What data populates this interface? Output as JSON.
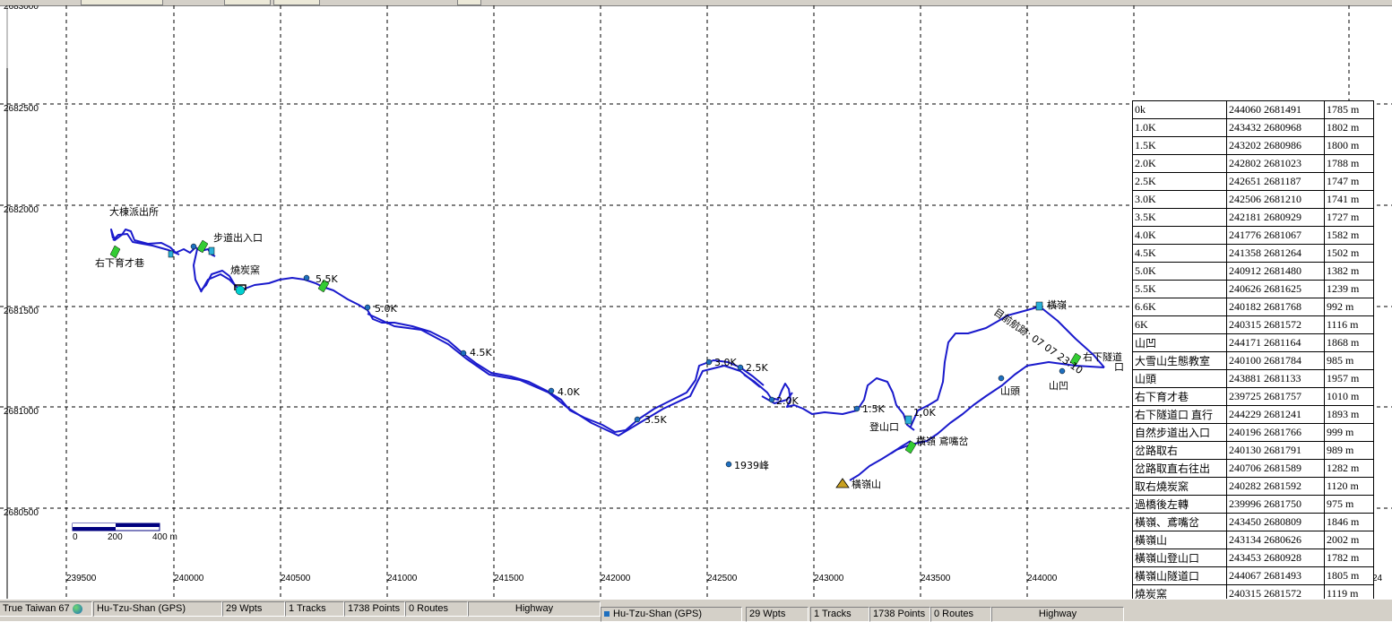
{
  "map": {
    "y_axis_labels": [
      "2683000",
      "2682500",
      "2682000",
      "2681500",
      "2681000",
      "2680500"
    ],
    "x_axis_labels": [
      "239500",
      "240000",
      "240500",
      "241000",
      "241500",
      "242000",
      "242500",
      "243000",
      "243500",
      "244000",
      "24"
    ],
    "scale_bar": {
      "label_0": "0",
      "label_200": "200",
      "label_400": "400 m"
    },
    "waypoint_labels": {
      "police": "大棟派出所",
      "trail_entrance": "步道出入口",
      "right_lane": "右下育才巷",
      "kiln": "燒炭窯",
      "k55": "5.5K",
      "k50": "5.0K",
      "k45": "4.5K",
      "k40": "4.0K",
      "k35": "3.5K",
      "k30": "3.0K",
      "k25": "2.5K",
      "k20": "2.0K",
      "k15": "1.5K",
      "k10": "1.0K",
      "trailhead": "登山口",
      "peak1939": "1939峰",
      "hengling_junction": "橫嶺 鳶嘴岔",
      "hengling_mtn": "橫嶺山",
      "shantou": "山頭",
      "shanao": "山凹",
      "ridge_top": "橫嶺",
      "tunnel_r1": "右下隧道",
      "tunnel_r2": "口",
      "track_name": "目前航跡: 07 07 23:10"
    }
  },
  "waypoint_table": [
    [
      "0k",
      "244060 2681491",
      "1785 m"
    ],
    [
      "1.0K",
      "243432 2680968",
      "1802 m"
    ],
    [
      "1.5K",
      "243202 2680986",
      "1800 m"
    ],
    [
      "2.0K",
      "242802 2681023",
      "1788 m"
    ],
    [
      "2.5K",
      "242651 2681187",
      "1747 m"
    ],
    [
      "3.0K",
      "242506 2681210",
      "1741 m"
    ],
    [
      "3.5K",
      "242181 2680929",
      "1727 m"
    ],
    [
      "4.0K",
      "241776 2681067",
      "1582 m"
    ],
    [
      "4.5K",
      "241358 2681264",
      "1502 m"
    ],
    [
      "5.0K",
      "240912 2681480",
      "1382 m"
    ],
    [
      "5.5K",
      "240626 2681625",
      "1239 m"
    ],
    [
      "6.6K",
      "240182 2681768",
      "992 m"
    ],
    [
      "6K",
      "240315 2681572",
      "1116 m"
    ],
    [
      "山凹",
      "244171 2681164",
      "1868 m"
    ],
    [
      "大雪山生態教室",
      "240100 2681784",
      "985 m"
    ],
    [
      "山頭",
      "243881 2681133",
      "1957 m"
    ],
    [
      "右下育才巷",
      "239725 2681757",
      "1010 m"
    ],
    [
      "右下隧道口 直行",
      "244229 2681241",
      "1893 m"
    ],
    [
      "自然步道出入口",
      "240196 2681766",
      "999 m"
    ],
    [
      "岔路取右",
      "240130 2681791",
      "989 m"
    ],
    [
      "岔路取直右往出",
      "240706 2681589",
      "1282 m"
    ],
    [
      "取右燒炭窯",
      "240282 2681592",
      "1120 m"
    ],
    [
      "過橋後左轉",
      "239996 2681750",
      "975 m"
    ],
    [
      "橫嶺、鳶嘴岔",
      "243450 2680809",
      "1846 m"
    ],
    [
      "橫嶺山",
      "243134 2680626",
      "2002 m"
    ],
    [
      "橫嶺山登山口",
      "243453 2680928",
      "1782 m"
    ],
    [
      "橫嶺山隧道口",
      "244067 2681493",
      "1805 m"
    ],
    [
      "燒炭窯",
      "240315 2681572",
      "1119 m"
    ]
  ],
  "status_bar": {
    "projection": "True Taiwan 67",
    "file": "Hu-Tzu-Shan (GPS)",
    "waypoints": "29 Wpts",
    "tracks": "1 Tracks",
    "points": "1738 Points",
    "routes": "0 Routes",
    "map_type": "Highway",
    "file_dup": "Hu-Tzu-Shan (GPS)",
    "waypoints_dup": "29 Wpts",
    "tracks_dup": "1 Tracks",
    "points_dup": "1738 Points",
    "routes_dup": "0 Routes",
    "map_type_dup": "Highway"
  },
  "colors": {
    "track": "#1a1acc",
    "waypoint_fill": "#1e6fbf",
    "flag": "#33cc33",
    "grid": "#000000",
    "scale_bar": "#00007f"
  }
}
